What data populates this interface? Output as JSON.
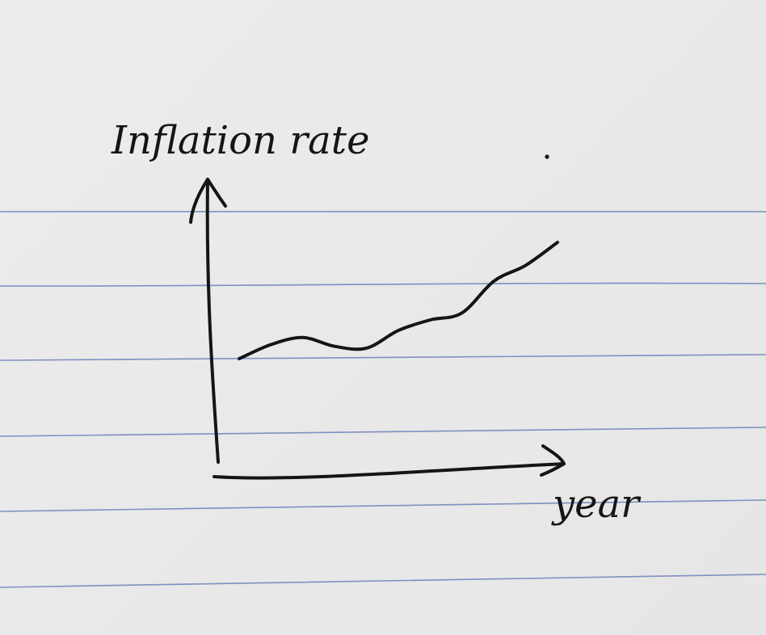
{
  "chart_data": {
    "type": "line",
    "title": "",
    "ylabel": "Inflation rate",
    "xlabel": "year",
    "x": [
      0,
      1,
      2,
      3,
      4,
      5,
      6,
      7,
      8,
      9,
      10
    ],
    "values": [
      0.0,
      0.08,
      0.12,
      0.07,
      0.06,
      0.16,
      0.22,
      0.26,
      0.44,
      0.53,
      0.66
    ],
    "grid": false,
    "legend": "none"
  }
}
